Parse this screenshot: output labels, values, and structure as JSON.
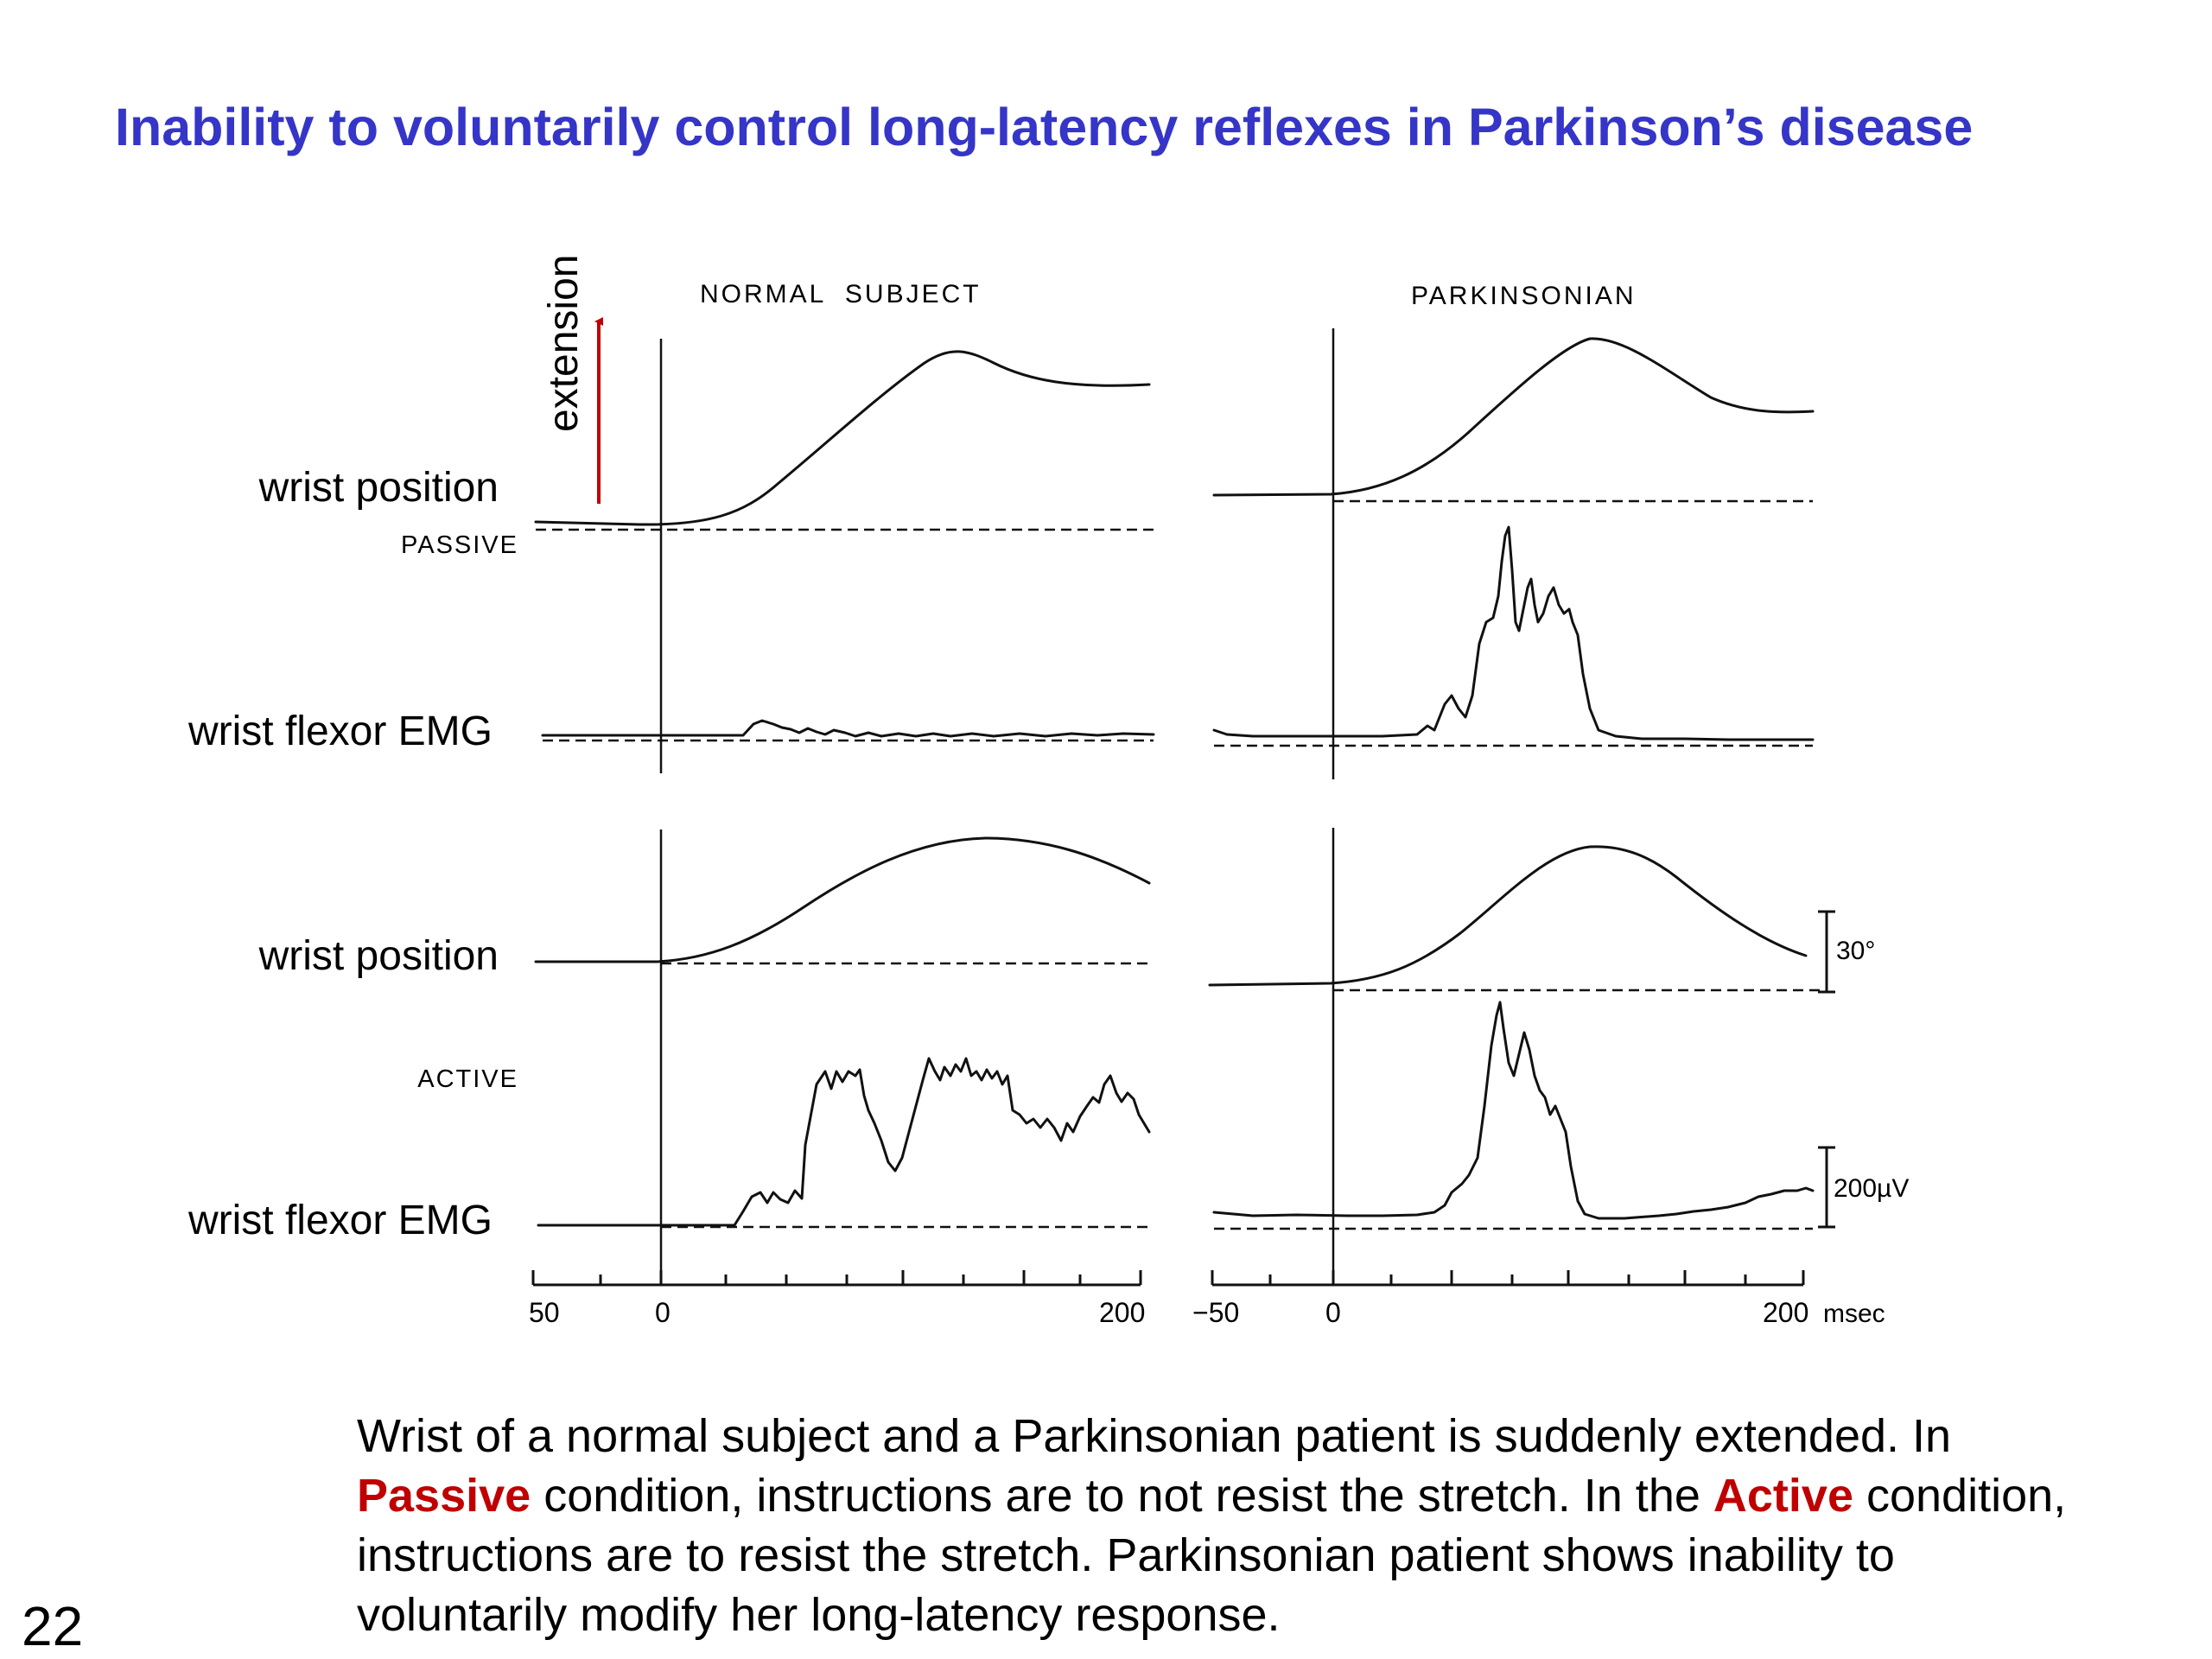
{
  "slide": {
    "title": "Inability to voluntarily control long-latency reflexes in Parkinson’s disease",
    "page_number": "22"
  },
  "figure": {
    "panel_headers": {
      "normal": "NORMAL  SUBJECT",
      "parkinsonian": "PARKINSONIAN"
    },
    "condition_labels": {
      "passive": "PASSIVE",
      "active": "ACTIVE"
    },
    "trace_labels": {
      "passive_position": "wrist position",
      "passive_emg": "wrist flexor EMG",
      "active_position": "wrist position",
      "active_emg": "wrist flexor EMG"
    },
    "direction_label": "extension",
    "direction_arrow_color": "#c00000",
    "scale_bars": {
      "angle": "30°",
      "voltage": "200µV"
    },
    "time_axes": {
      "normal_ticks": [
        "50",
        "0",
        "200"
      ],
      "parkinsonian_ticks": [
        "−50",
        "0",
        "200"
      ],
      "unit": "msec"
    }
  },
  "caption": {
    "part1": "Wrist of a normal subject and a Parkinsonian patient is suddenly extended.  In ",
    "passive_keyword": "Passive",
    "part2": " condition, instructions are to not resist the stretch.  In the ",
    "active_keyword": "Active",
    "part3": " condition, instructions are to resist the stretch.  Parkinsonian patient shows inability to voluntarily modify her long-latency response.",
    "keyword_color": "#c00000"
  }
}
